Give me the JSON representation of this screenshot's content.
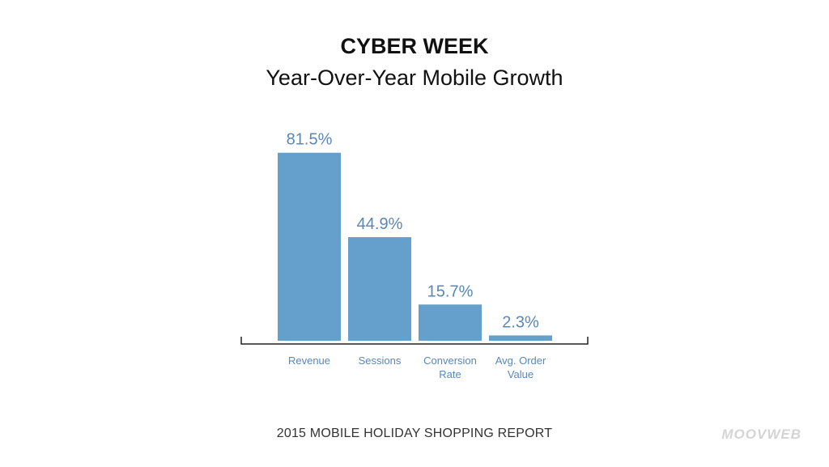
{
  "chart_data": {
    "type": "bar",
    "title": "CYBER WEEK",
    "subtitle": "Year-Over-Year Mobile Growth",
    "categories": [
      [
        "Revenue"
      ],
      [
        "Sessions"
      ],
      [
        "Conversion",
        "Rate"
      ],
      [
        "Avg. Order",
        "Value"
      ]
    ],
    "values": [
      81.5,
      44.9,
      15.7,
      2.3
    ],
    "value_labels": [
      "81.5%",
      "44.9%",
      "15.7%",
      "2.3%"
    ],
    "ylim": [
      0,
      100
    ],
    "grid": false,
    "legend": "none",
    "bar_color": "#659fcb",
    "label_color": "#5a87b8"
  },
  "footer": {
    "report": "2015 MOBILE HOLIDAY SHOPPING REPORT",
    "brand": "MOOVWEB"
  }
}
